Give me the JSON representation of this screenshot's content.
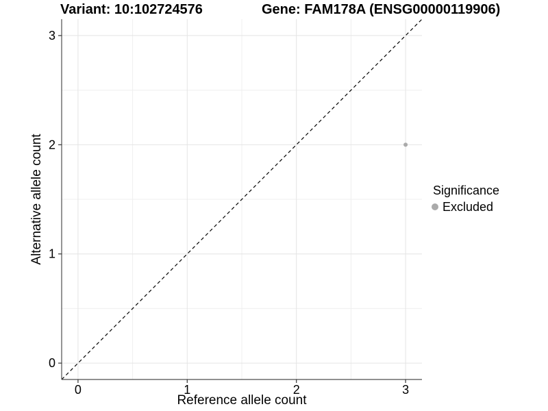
{
  "chart_data": {
    "type": "scatter",
    "titles": {
      "left": "Variant: 10:102724576",
      "right": "Gene: FAM178A (ENSG00000119906)"
    },
    "xlabel": "Reference allele count",
    "ylabel": "Alternative allele count",
    "xlim": [
      -0.15,
      3.15
    ],
    "ylim": [
      -0.15,
      3.15
    ],
    "xticks": [
      0,
      1,
      2,
      3
    ],
    "yticks": [
      0,
      1,
      2,
      3
    ],
    "x_minor_gridlines": [
      0.5,
      1.5,
      2.5
    ],
    "y_minor_gridlines": [
      0.5,
      1.5,
      2.5
    ],
    "grid": true,
    "identity_line": {
      "style": "dashed",
      "slope": 1,
      "intercept": 0,
      "color": "#000000"
    },
    "series": [
      {
        "name": "Excluded",
        "color": "#aaaaaa",
        "point_radius": 3,
        "points": [
          {
            "x": 3,
            "y": 2
          }
        ]
      }
    ],
    "legend": {
      "title": "Significance",
      "position": "right",
      "items": [
        {
          "label": "Excluded",
          "color": "#aaaaaa"
        }
      ]
    },
    "style": {
      "background": "#ffffff",
      "grid_major_color": "#e4e4e4",
      "grid_minor_color": "#efefef",
      "axis_line_color": "#4d4d4d",
      "tick_color": "#333333",
      "tick_label_color": "#000000",
      "tick_label_size": 18
    }
  }
}
